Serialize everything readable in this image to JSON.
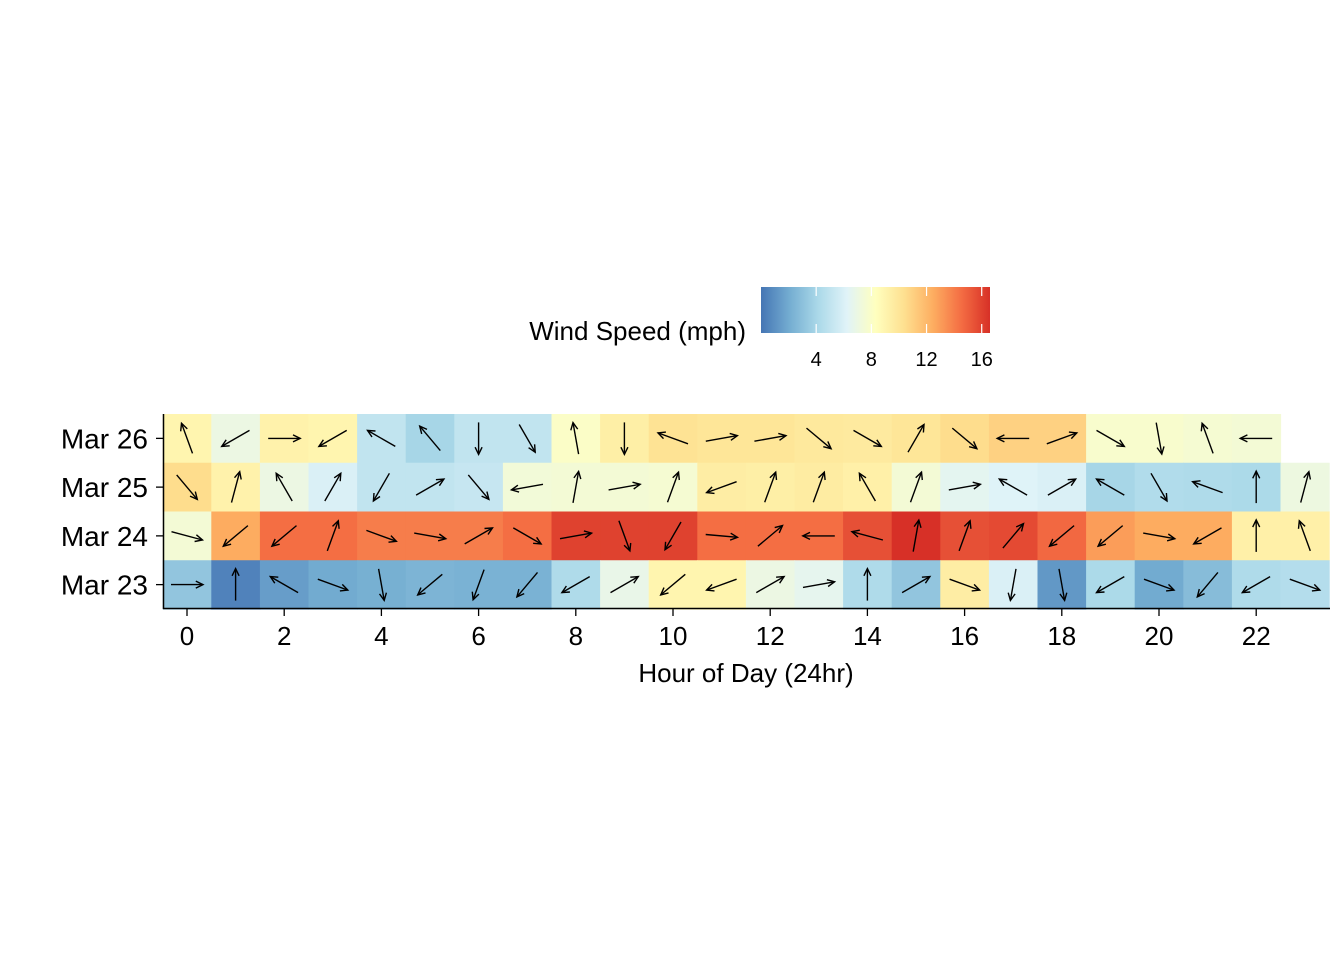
{
  "chart_data": {
    "type": "heatmap",
    "title": "",
    "xlabel": "Hour of Day (24hr)",
    "ylabel": "",
    "x_ticks": [
      0,
      2,
      4,
      6,
      8,
      10,
      12,
      14,
      16,
      18,
      20,
      22
    ],
    "x_range": [
      -0.5,
      23.5
    ],
    "rows": [
      "Mar 23",
      "Mar 24",
      "Mar 25",
      "Mar 26"
    ],
    "legend": {
      "title": "Wind Speed (mph)",
      "ticks": [
        4,
        8,
        12,
        16
      ],
      "range": [
        0,
        16.6
      ],
      "placement": "top",
      "colors": [
        "#4575b4",
        "#74add1",
        "#abd9e9",
        "#e0f3f8",
        "#ffffbf",
        "#fee090",
        "#fdae61",
        "#f46d43",
        "#d73027"
      ]
    },
    "speed": {
      "Mar 23": [
        3.2,
        0.5,
        1.5,
        2.0,
        2.2,
        2.4,
        2.3,
        2.3,
        4.3,
        6.8,
        9.0,
        9.0,
        7.0,
        6.6,
        4.3,
        3.2,
        9.5,
        6.0,
        1.3,
        4.2,
        2.0,
        2.8,
        4.3,
        4.5
      ],
      "Mar 24": [
        7.5,
        12.5,
        14.5,
        14.5,
        14.0,
        14.0,
        14.0,
        14.5,
        16.0,
        16.0,
        16.0,
        14.5,
        14.5,
        14.5,
        15.5,
        16.6,
        15.5,
        15.7,
        14.7,
        13.0,
        12.5,
        12.5,
        9.3,
        9.3
      ],
      "Mar 25": [
        10.5,
        9.2,
        7.0,
        6.0,
        5.0,
        5.0,
        5.2,
        7.4,
        7.5,
        7.5,
        7.6,
        9.5,
        9.4,
        9.6,
        9.3,
        7.5,
        6.5,
        6.2,
        6.0,
        4.0,
        4.4,
        4.3,
        4.2,
        7.1
      ],
      "Mar 26": [
        9.0,
        7.0,
        9.2,
        9.0,
        5.0,
        4.0,
        5.0,
        5.0,
        8.0,
        9.4,
        10.2,
        10.0,
        10.0,
        9.8,
        9.7,
        10.0,
        10.5,
        11.0,
        11.0,
        7.8,
        7.8,
        7.6,
        7.5,
        null
      ]
    },
    "direction_deg": {
      "Mar 23": [
        90,
        0,
        300,
        110,
        170,
        230,
        200,
        220,
        240,
        60,
        230,
        250,
        60,
        80,
        0,
        60,
        110,
        190,
        170,
        240,
        110,
        220,
        240,
        110
      ],
      "Mar 24": [
        105,
        230,
        230,
        20,
        110,
        100,
        60,
        120,
        80,
        160,
        210,
        95,
        50,
        270,
        285,
        10,
        20,
        40,
        230,
        230,
        100,
        240,
        0,
        340
      ],
      "Mar 25": [
        140,
        15,
        330,
        30,
        210,
        60,
        140,
        260,
        10,
        80,
        20,
        250,
        20,
        20,
        330,
        20,
        80,
        300,
        60,
        300,
        150,
        290,
        0,
        15
      ],
      "Mar 26": [
        340,
        240,
        90,
        240,
        300,
        320,
        180,
        150,
        350,
        180,
        290,
        80,
        80,
        130,
        120,
        30,
        130,
        270,
        70,
        120,
        170,
        340,
        270,
        null
      ]
    }
  }
}
